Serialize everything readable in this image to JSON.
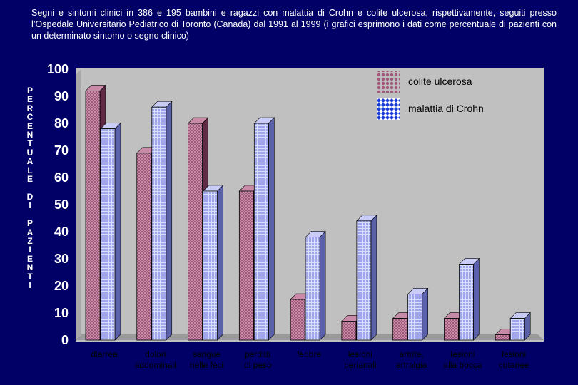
{
  "title": "Segni e sintomi clinici in 386 e 195 bambini e ragazzi con malattia di Crohn e colite ulcerosa, rispettivamente, seguiti presso l’Ospedale Universitario Pediatrico di Toronto (Canada) dal 1991 al 1999 (i grafici esprimono i dati come percentuale di pazienti con un determinato sintomo o segno clinico)",
  "colors": {
    "background": "#000066",
    "plot_area": "#C0C0C0",
    "colite": "#A0587A",
    "crohn": "#9FA6EC"
  },
  "chart_data": {
    "type": "bar",
    "title": "",
    "ylabel": "PERCENTUALE DI PAZIENTI",
    "ylabel_lines": [
      "P",
      "E",
      "R",
      "C",
      "E",
      "N",
      "T",
      "U",
      "A",
      "L",
      "E",
      "",
      "D",
      "I",
      "",
      "P",
      "A",
      "Z",
      "I",
      "E",
      "N",
      "T",
      "I"
    ],
    "ylim": [
      0,
      100
    ],
    "yticks": [
      0,
      10,
      20,
      30,
      40,
      50,
      60,
      70,
      80,
      90,
      100
    ],
    "grid": false,
    "legend_position": "top-right",
    "categories": [
      [
        "diarrea"
      ],
      [
        "dolori",
        "addominali"
      ],
      [
        "sangue",
        "nelle feci"
      ],
      [
        "perdita",
        "di peso"
      ],
      [
        "febbre"
      ],
      [
        "lesioni",
        "perianali"
      ],
      [
        "artrite,",
        "artralgia"
      ],
      [
        "lesioni",
        "alla bocca"
      ],
      [
        "lesioni",
        "cutanee"
      ]
    ],
    "series": [
      {
        "name": "colite ulcerosa",
        "values": [
          92,
          69,
          80,
          55,
          15,
          7,
          8,
          8,
          2
        ]
      },
      {
        "name": "malattia di Crohn",
        "values": [
          78,
          86,
          55,
          80,
          38,
          44,
          17,
          28,
          8
        ]
      }
    ]
  }
}
